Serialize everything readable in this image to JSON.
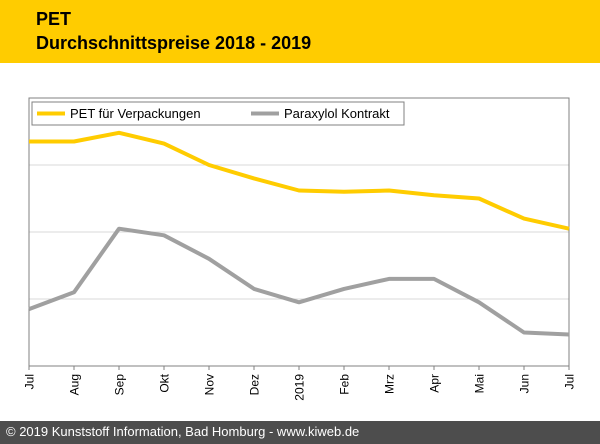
{
  "header": {
    "line1": "PET",
    "line2": "Durchschnittspreise 2018 - 2019"
  },
  "footer": {
    "text": "© 2019 Kunststoff Information, Bad Homburg - www.kiweb.de"
  },
  "colors": {
    "header_bg": "#ffcc00",
    "footer_bg": "#4d4d4d",
    "series_pet": "#ffcc00",
    "series_paraxylol": "#a0a0a0",
    "grid": "#d9d9d9"
  },
  "chart_data": {
    "type": "line",
    "title": "",
    "xlabel": "",
    "ylabel": "",
    "ylim": [
      0,
      4
    ],
    "grid": true,
    "legend_position": "top-left",
    "categories": [
      "Jul",
      "Aug",
      "Sep",
      "Okt",
      "Nov",
      "Dez",
      "2019",
      "Feb",
      "Mrz",
      "Apr",
      "Mai",
      "Jun",
      "Jul"
    ],
    "series": [
      {
        "name": "PET für Verpackungen",
        "color": "#ffcc00",
        "values": [
          3.35,
          3.35,
          3.48,
          3.32,
          3.0,
          2.8,
          2.62,
          2.6,
          2.62,
          2.55,
          2.5,
          2.2,
          2.05
        ]
      },
      {
        "name": "Paraxylol Kontrakt",
        "color": "#a0a0a0",
        "values": [
          0.85,
          1.1,
          2.05,
          1.95,
          1.6,
          1.15,
          0.95,
          1.15,
          1.3,
          1.3,
          0.95,
          0.5,
          0.47
        ]
      }
    ]
  }
}
